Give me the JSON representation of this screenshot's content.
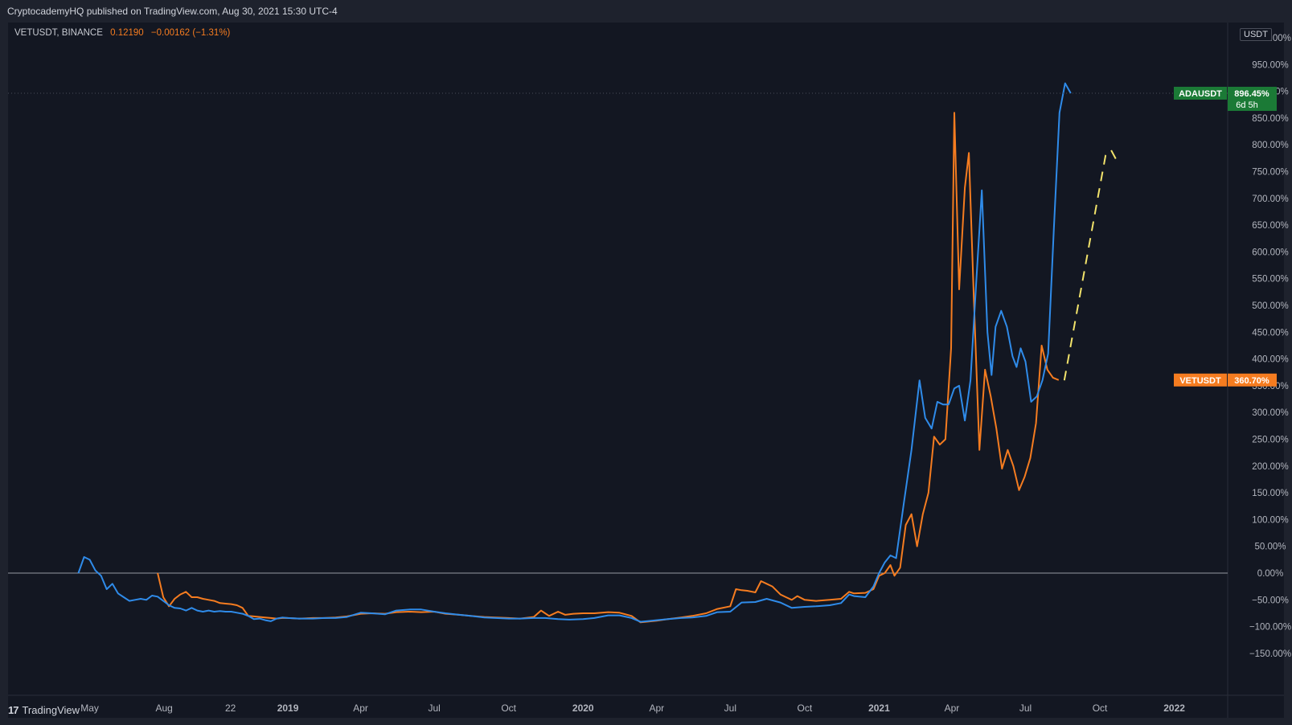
{
  "header": {
    "publisher": "CryptocademyHQ published on TradingView.com, Aug 30, 2021 15:30 UTC-4"
  },
  "legend": {
    "symbol": "VETUSDT, BINANCE",
    "price": "0.12190",
    "change": "−0.00162 (−1.31%)"
  },
  "scale": {
    "unit": "USDT"
  },
  "footer": {
    "brand": "TradingView",
    "logo_icon": "tradingview-logo-icon"
  },
  "colors": {
    "background": "#131722",
    "ada": "#2f8be9",
    "vet": "#f57c20",
    "projection": "#f2e36b",
    "ada_badge": "#1b7a36",
    "vet_badge": "#f57c20"
  },
  "chart_data": {
    "type": "line",
    "title": "",
    "xlabel": "",
    "ylabel": "",
    "y_unit": "%",
    "ylim": [
      -190,
      1000
    ],
    "y_ticks": [
      "1000.00%",
      "950.00%",
      "900.00%",
      "850.00%",
      "800.00%",
      "750.00%",
      "700.00%",
      "650.00%",
      "600.00%",
      "550.00%",
      "500.00%",
      "450.00%",
      "400.00%",
      "350.00%",
      "300.00%",
      "250.00%",
      "200.00%",
      "150.00%",
      "100.00%",
      "50.00%",
      "0.00%",
      "−50.00%",
      "−100.00%",
      "−150.00%"
    ],
    "x_ticks": [
      "May",
      "Aug",
      "22",
      "2019",
      "Apr",
      "Jul",
      "Oct",
      "2020",
      "Apr",
      "Jul",
      "Oct",
      "2021",
      "Apr",
      "Jul",
      "Oct",
      "2022"
    ],
    "x_tick_dates": [
      "2018-05-01",
      "2018-08-01",
      "2018-10-22",
      "2019-01-01",
      "2019-04-01",
      "2019-07-01",
      "2019-10-01",
      "2020-01-01",
      "2020-04-01",
      "2020-07-01",
      "2020-10-01",
      "2021-01-01",
      "2021-04-01",
      "2021-07-01",
      "2021-10-01",
      "2022-01-01"
    ],
    "grid": false,
    "series": [
      {
        "name": "ADAUSDT",
        "badge_label": "ADAUSDT",
        "badge_value": "896.45%",
        "badge_countdown": "6d 5h",
        "values": [
          [
            "2018-04-17",
            0
          ],
          [
            "2018-04-24",
            30
          ],
          [
            "2018-05-01",
            25
          ],
          [
            "2018-05-08",
            5
          ],
          [
            "2018-05-15",
            -5
          ],
          [
            "2018-05-22",
            -30
          ],
          [
            "2018-05-29",
            -20
          ],
          [
            "2018-06-05",
            -38
          ],
          [
            "2018-06-12",
            -45
          ],
          [
            "2018-06-19",
            -52
          ],
          [
            "2018-06-26",
            -50
          ],
          [
            "2018-07-03",
            -48
          ],
          [
            "2018-07-10",
            -50
          ],
          [
            "2018-07-17",
            -42
          ],
          [
            "2018-07-24",
            -44
          ],
          [
            "2018-07-31",
            -52
          ],
          [
            "2018-08-07",
            -60
          ],
          [
            "2018-08-14",
            -65
          ],
          [
            "2018-08-21",
            -66
          ],
          [
            "2018-08-28",
            -70
          ],
          [
            "2018-09-04",
            -65
          ],
          [
            "2018-09-11",
            -70
          ],
          [
            "2018-09-18",
            -72
          ],
          [
            "2018-09-25",
            -70
          ],
          [
            "2018-10-02",
            -72
          ],
          [
            "2018-10-09",
            -71
          ],
          [
            "2018-10-16",
            -72
          ],
          [
            "2018-10-23",
            -72
          ],
          [
            "2018-10-30",
            -74
          ],
          [
            "2018-11-06",
            -76
          ],
          [
            "2018-11-13",
            -80
          ],
          [
            "2018-11-20",
            -86
          ],
          [
            "2018-11-27",
            -85
          ],
          [
            "2018-12-04",
            -88
          ],
          [
            "2018-12-11",
            -90
          ],
          [
            "2018-12-18",
            -85
          ],
          [
            "2018-12-25",
            -83
          ],
          [
            "2019-01-01",
            -84
          ],
          [
            "2019-01-15",
            -85
          ],
          [
            "2019-02-01",
            -85
          ],
          [
            "2019-02-15",
            -84
          ],
          [
            "2019-03-01",
            -84
          ],
          [
            "2019-03-15",
            -82
          ],
          [
            "2019-04-01",
            -74
          ],
          [
            "2019-04-15",
            -75
          ],
          [
            "2019-05-01",
            -77
          ],
          [
            "2019-05-15",
            -70
          ],
          [
            "2019-06-01",
            -68
          ],
          [
            "2019-06-15",
            -68
          ],
          [
            "2019-07-01",
            -72
          ],
          [
            "2019-07-15",
            -75
          ],
          [
            "2019-08-01",
            -78
          ],
          [
            "2019-08-15",
            -80
          ],
          [
            "2019-09-01",
            -83
          ],
          [
            "2019-09-15",
            -84
          ],
          [
            "2019-10-01",
            -85
          ],
          [
            "2019-10-15",
            -85
          ],
          [
            "2019-11-01",
            -84
          ],
          [
            "2019-11-15",
            -84
          ],
          [
            "2019-12-01",
            -86
          ],
          [
            "2019-12-15",
            -87
          ],
          [
            "2020-01-01",
            -86
          ],
          [
            "2020-01-15",
            -84
          ],
          [
            "2020-02-01",
            -79
          ],
          [
            "2020-02-15",
            -79
          ],
          [
            "2020-03-01",
            -84
          ],
          [
            "2020-03-12",
            -91
          ],
          [
            "2020-04-01",
            -88
          ],
          [
            "2020-04-15",
            -86
          ],
          [
            "2020-05-01",
            -84
          ],
          [
            "2020-05-15",
            -83
          ],
          [
            "2020-06-01",
            -80
          ],
          [
            "2020-06-15",
            -73
          ],
          [
            "2020-07-01",
            -72
          ],
          [
            "2020-07-15",
            -55
          ],
          [
            "2020-08-01",
            -54
          ],
          [
            "2020-08-15",
            -48
          ],
          [
            "2020-09-01",
            -55
          ],
          [
            "2020-09-15",
            -65
          ],
          [
            "2020-10-01",
            -63
          ],
          [
            "2020-10-15",
            -62
          ],
          [
            "2020-11-01",
            -60
          ],
          [
            "2020-11-15",
            -56
          ],
          [
            "2020-11-25",
            -40
          ],
          [
            "2020-12-01",
            -43
          ],
          [
            "2020-12-15",
            -45
          ],
          [
            "2020-12-25",
            -25
          ],
          [
            "2021-01-01",
            0
          ],
          [
            "2021-01-08",
            20
          ],
          [
            "2021-01-15",
            33
          ],
          [
            "2021-01-22",
            28
          ],
          [
            "2021-02-01",
            135
          ],
          [
            "2021-02-10",
            230
          ],
          [
            "2021-02-20",
            360
          ],
          [
            "2021-02-27",
            290
          ],
          [
            "2021-03-07",
            270
          ],
          [
            "2021-03-14",
            320
          ],
          [
            "2021-03-21",
            315
          ],
          [
            "2021-03-28",
            315
          ],
          [
            "2021-04-04",
            345
          ],
          [
            "2021-04-10",
            350
          ],
          [
            "2021-04-17",
            285
          ],
          [
            "2021-04-24",
            360
          ],
          [
            "2021-05-01",
            540
          ],
          [
            "2021-05-08",
            715
          ],
          [
            "2021-05-15",
            450
          ],
          [
            "2021-05-20",
            370
          ],
          [
            "2021-05-25",
            460
          ],
          [
            "2021-06-01",
            490
          ],
          [
            "2021-06-08",
            460
          ],
          [
            "2021-06-15",
            405
          ],
          [
            "2021-06-20",
            385
          ],
          [
            "2021-06-25",
            420
          ],
          [
            "2021-07-01",
            395
          ],
          [
            "2021-07-08",
            320
          ],
          [
            "2021-07-15",
            330
          ],
          [
            "2021-07-22",
            360
          ],
          [
            "2021-07-29",
            410
          ],
          [
            "2021-08-05",
            640
          ],
          [
            "2021-08-12",
            860
          ],
          [
            "2021-08-19",
            915
          ],
          [
            "2021-08-26",
            896.45
          ]
        ]
      },
      {
        "name": "VETUSDT",
        "badge_label": "VETUSDT",
        "badge_value": "360.70%",
        "values": [
          [
            "2018-07-24",
            0
          ],
          [
            "2018-07-31",
            -45
          ],
          [
            "2018-08-07",
            -62
          ],
          [
            "2018-08-14",
            -48
          ],
          [
            "2018-08-21",
            -40
          ],
          [
            "2018-08-28",
            -35
          ],
          [
            "2018-09-04",
            -45
          ],
          [
            "2018-09-11",
            -45
          ],
          [
            "2018-09-18",
            -48
          ],
          [
            "2018-09-25",
            -50
          ],
          [
            "2018-10-02",
            -52
          ],
          [
            "2018-10-09",
            -56
          ],
          [
            "2018-10-16",
            -57
          ],
          [
            "2018-10-23",
            -58
          ],
          [
            "2018-10-30",
            -60
          ],
          [
            "2018-11-06",
            -65
          ],
          [
            "2018-11-13",
            -80
          ],
          [
            "2018-11-20",
            -81
          ],
          [
            "2018-11-27",
            -82
          ],
          [
            "2018-12-04",
            -83
          ],
          [
            "2018-12-11",
            -84
          ],
          [
            "2018-12-18",
            -85
          ],
          [
            "2018-12-25",
            -84
          ],
          [
            "2019-01-01",
            -84
          ],
          [
            "2019-01-15",
            -85
          ],
          [
            "2019-02-01",
            -84
          ],
          [
            "2019-02-15",
            -84
          ],
          [
            "2019-03-01",
            -83
          ],
          [
            "2019-03-15",
            -81
          ],
          [
            "2019-04-01",
            -76
          ],
          [
            "2019-04-15",
            -75
          ],
          [
            "2019-05-01",
            -76
          ],
          [
            "2019-05-15",
            -73
          ],
          [
            "2019-06-01",
            -72
          ],
          [
            "2019-06-15",
            -73
          ],
          [
            "2019-07-01",
            -72
          ],
          [
            "2019-07-15",
            -76
          ],
          [
            "2019-08-01",
            -78
          ],
          [
            "2019-08-15",
            -80
          ],
          [
            "2019-09-01",
            -82
          ],
          [
            "2019-09-15",
            -83
          ],
          [
            "2019-10-01",
            -84
          ],
          [
            "2019-10-15",
            -85
          ],
          [
            "2019-11-01",
            -82
          ],
          [
            "2019-11-10",
            -70
          ],
          [
            "2019-11-20",
            -80
          ],
          [
            "2019-12-01",
            -72
          ],
          [
            "2019-12-10",
            -78
          ],
          [
            "2019-12-20",
            -76
          ],
          [
            "2020-01-01",
            -75
          ],
          [
            "2020-01-15",
            -75
          ],
          [
            "2020-02-01",
            -73
          ],
          [
            "2020-02-15",
            -74
          ],
          [
            "2020-03-01",
            -80
          ],
          [
            "2020-03-12",
            -92
          ],
          [
            "2020-04-01",
            -89
          ],
          [
            "2020-04-15",
            -86
          ],
          [
            "2020-05-01",
            -83
          ],
          [
            "2020-05-15",
            -80
          ],
          [
            "2020-06-01",
            -75
          ],
          [
            "2020-06-15",
            -67
          ],
          [
            "2020-07-01",
            -62
          ],
          [
            "2020-07-08",
            -30
          ],
          [
            "2020-07-15",
            -32
          ],
          [
            "2020-07-22",
            -33
          ],
          [
            "2020-08-01",
            -36
          ],
          [
            "2020-08-08",
            -15
          ],
          [
            "2020-08-15",
            -20
          ],
          [
            "2020-08-22",
            -25
          ],
          [
            "2020-09-01",
            -40
          ],
          [
            "2020-09-08",
            -45
          ],
          [
            "2020-09-15",
            -50
          ],
          [
            "2020-09-22",
            -43
          ],
          [
            "2020-10-01",
            -50
          ],
          [
            "2020-10-15",
            -52
          ],
          [
            "2020-11-01",
            -50
          ],
          [
            "2020-11-15",
            -48
          ],
          [
            "2020-11-25",
            -35
          ],
          [
            "2020-12-01",
            -38
          ],
          [
            "2020-12-15",
            -37
          ],
          [
            "2020-12-25",
            -30
          ],
          [
            "2021-01-01",
            -5
          ],
          [
            "2021-01-08",
            0
          ],
          [
            "2021-01-15",
            15
          ],
          [
            "2021-01-20",
            -5
          ],
          [
            "2021-01-27",
            10
          ],
          [
            "2021-02-03",
            90
          ],
          [
            "2021-02-10",
            110
          ],
          [
            "2021-02-17",
            50
          ],
          [
            "2021-02-24",
            110
          ],
          [
            "2021-03-03",
            150
          ],
          [
            "2021-03-10",
            255
          ],
          [
            "2021-03-17",
            240
          ],
          [
            "2021-03-24",
            250
          ],
          [
            "2021-03-31",
            420
          ],
          [
            "2021-04-04",
            860
          ],
          [
            "2021-04-10",
            530
          ],
          [
            "2021-04-17",
            720
          ],
          [
            "2021-04-22",
            785
          ],
          [
            "2021-04-28",
            520
          ],
          [
            "2021-05-05",
            230
          ],
          [
            "2021-05-12",
            380
          ],
          [
            "2021-05-19",
            330
          ],
          [
            "2021-05-26",
            270
          ],
          [
            "2021-06-02",
            195
          ],
          [
            "2021-06-09",
            230
          ],
          [
            "2021-06-16",
            200
          ],
          [
            "2021-06-23",
            155
          ],
          [
            "2021-06-30",
            180
          ],
          [
            "2021-07-07",
            215
          ],
          [
            "2021-07-14",
            280
          ],
          [
            "2021-07-21",
            425
          ],
          [
            "2021-07-28",
            380
          ],
          [
            "2021-08-04",
            365
          ],
          [
            "2021-08-11",
            360.7
          ]
        ]
      },
      {
        "name": "",
        "style": "dashed-projection",
        "values": [
          [
            "2021-08-18",
            360
          ],
          [
            "2021-10-08",
            780
          ],
          [
            "2021-10-15",
            790
          ],
          [
            "2021-10-22",
            770
          ]
        ]
      }
    ]
  }
}
